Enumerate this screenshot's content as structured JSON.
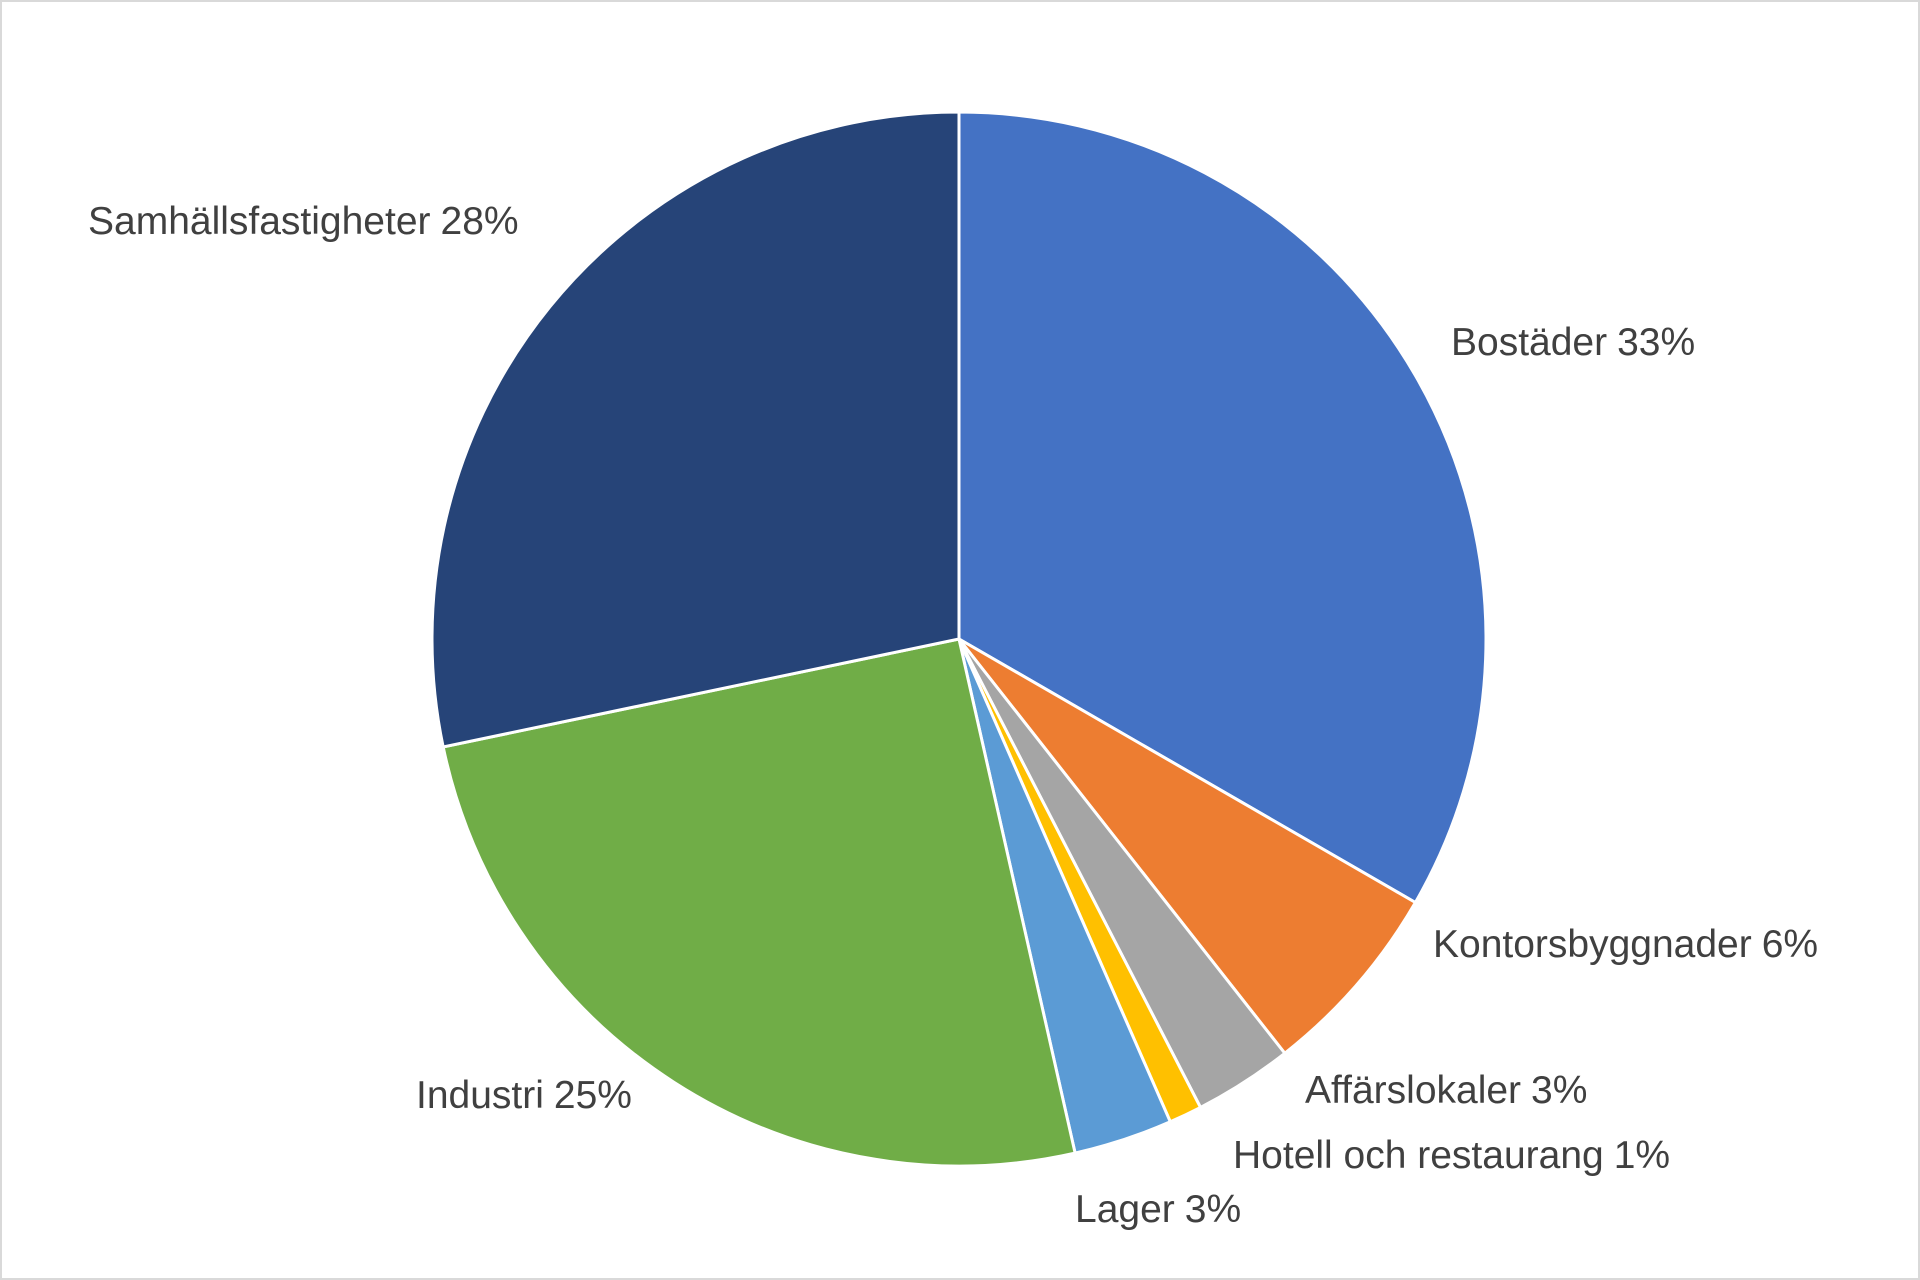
{
  "chart_data": {
    "type": "pie",
    "categories": [
      "Bostäder",
      "Kontorsbyggnader",
      "Affärslokaler",
      "Hotell och restaurang",
      "Lager",
      "Industri",
      "Samhällsfastigheter"
    ],
    "values": [
      33,
      6,
      3,
      1,
      3,
      25,
      28
    ],
    "value_labels": [
      "33%",
      "6%",
      "3%",
      "1%",
      "3%",
      "25%",
      "28%"
    ],
    "colors": [
      "#4472c4",
      "#ed7d31",
      "#a5a5a5",
      "#ffc000",
      "#5b9bd5",
      "#70ad47",
      "#264478"
    ]
  }
}
